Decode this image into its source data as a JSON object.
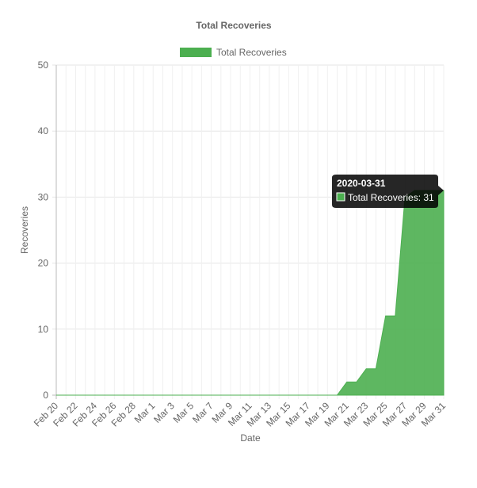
{
  "chart_data": {
    "type": "area",
    "title": "Total Recoveries",
    "categories": [
      "Feb 20",
      null,
      "Feb 22",
      null,
      "Feb 24",
      null,
      "Feb 26",
      null,
      "Feb 28",
      null,
      "Mar 1",
      null,
      "Mar 3",
      null,
      "Mar 5",
      null,
      "Mar 7",
      null,
      "Mar 9",
      null,
      "Mar 11",
      null,
      "Mar 13",
      null,
      "Mar 15",
      null,
      "Mar 17",
      null,
      "Mar 19",
      null,
      "Mar 21",
      null,
      "Mar 23",
      null,
      "Mar 25",
      null,
      "Mar 27",
      null,
      "Mar 29",
      null,
      "Mar 31"
    ],
    "series": [
      {
        "name": "Total Recoveries",
        "color": "#4caf50",
        "values": [
          0,
          0,
          0,
          0,
          0,
          0,
          0,
          0,
          0,
          0,
          0,
          0,
          0,
          0,
          0,
          0,
          0,
          0,
          0,
          0,
          0,
          0,
          0,
          0,
          0,
          0,
          0,
          0,
          0,
          0,
          2,
          2,
          4,
          4,
          12,
          12,
          30,
          31,
          31,
          31,
          31
        ]
      }
    ],
    "ylim": [
      0,
      50
    ],
    "yticks": [
      0,
      10,
      20,
      30,
      40,
      50
    ],
    "grid": true,
    "x_label": "Date",
    "y_label": "Recoveries",
    "legend": "top",
    "tooltip": {
      "title": "2020-03-31",
      "label": "Total Recoveries: 31"
    }
  }
}
